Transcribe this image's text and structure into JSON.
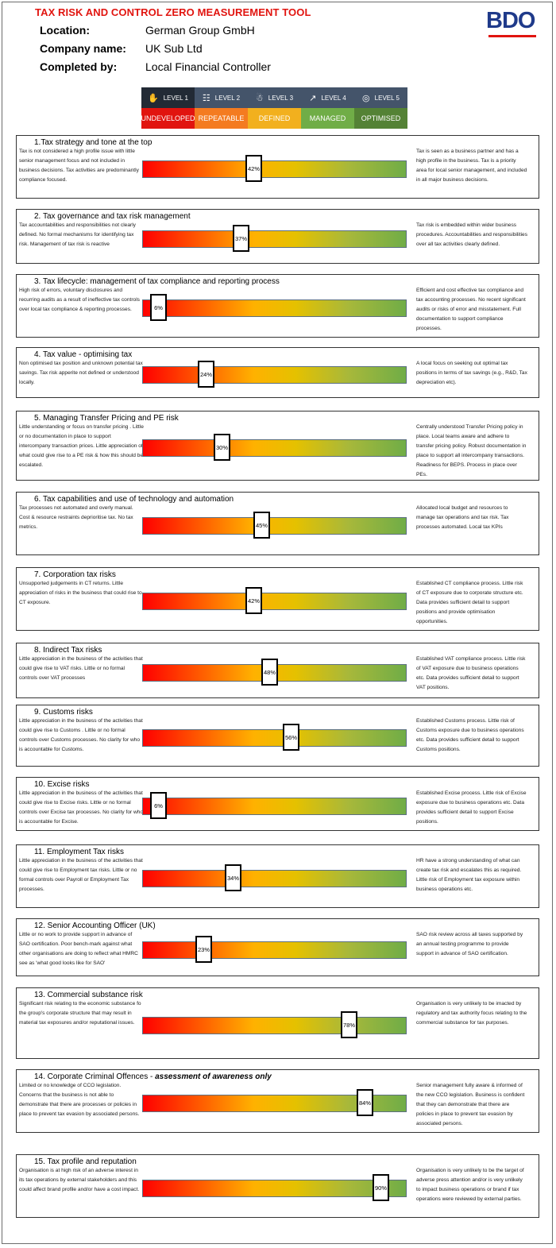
{
  "header": {
    "title": "TAX RISK AND CONTROL ZERO MEASUREMENT TOOL",
    "location_label": "Location:",
    "location_value": "German Group GmbH",
    "company_label": "Company name:",
    "company_value": "UK Sub Ltd",
    "completed_label": "Completed by:",
    "completed_value": "Local Financial Controller",
    "logo_text": "BDO"
  },
  "levels": [
    {
      "label": "LEVEL 1",
      "icon": "footprint-icon",
      "stage": "UNDEVELOPED",
      "color": "#e1140f"
    },
    {
      "label": "LEVEL 2",
      "icon": "document-icon",
      "stage": "REPEATABLE",
      "color": "#f47b20"
    },
    {
      "label": "LEVEL 3",
      "icon": "person-icon",
      "stage": "DEFINED",
      "color": "#f2b01e"
    },
    {
      "label": "LEVEL 4",
      "icon": "chart-icon",
      "stage": "MANAGED",
      "color": "#70ad47"
    },
    {
      "label": "LEVEL 5",
      "icon": "target-icon",
      "stage": "OPTIMISED",
      "color": "#548235"
    }
  ],
  "sections": [
    {
      "title": "1.Tax strategy and tone at the top",
      "left": "Tax is not considered a high profile issue with little senior management focus and not included in business decisions. Tax activities are predominantly compliance focused.",
      "right": "Tax is seen as a business partner and has a high profile in the business. Tax is a priority area for local senior management, and included in all major business decisions.",
      "value": 42,
      "label": "42%"
    },
    {
      "title": "2. Tax governance and tax risk management",
      "left": "Tax accountabilities and responsibilities not clearly defined. No formal mechanisms for identifying tax risk. Management of tax risk is reactive",
      "right": "Tax risk is embedded within wider business procedures. Accountabilities and responsibilities over all tax activities clearly defined.",
      "value": 37,
      "label": "37%"
    },
    {
      "title": "3. Tax lifecycle: management of tax compliance and reporting process",
      "left": "High risk of errors, voluntary disclosures and recurring audits as a result of ineffective tax controls over local tax compliance & reporting processes.",
      "right": "Efficient and cost effective tax compliance and tax accounting processes. No recent significant audits or risks of error and misstatement. Full documentation to support compliance processes.",
      "value": 6,
      "label": "6%"
    },
    {
      "title": "4. Tax value - optimising tax",
      "left": "Non optimised tax position and unknown potential tax savings. Tax risk apperite not defined or understood locally.",
      "right": "A local focus on seeking out optimal tax positions in terms of tax savings (e.g., R&D, Tax depreciation etc).",
      "value": 24,
      "label": "24%"
    },
    {
      "title": "5. Managing Transfer Pricing and PE risk",
      "left": "Little understanding or focus on transfer pricing . Little or no documentation in place to support intercompany transaction prices. Little appreciation of what could give rise to a PE risk & how this should be escalated.",
      "right": "Centrally understood Transfer Pricing policy in place. Local teams aware and adhere to transfer pricing policy. Robust documentation in place to support all intercompany transactions. Readiness for BEPS. Process in place over PEs.",
      "value": 30,
      "label": "30%"
    },
    {
      "title": "6. Tax capabilities and use of technology and automation",
      "left": "Tax processes not automated and overly manual. Cost & resource restraints deprioritise tax. No tax metrics.",
      "right": "Allocated local budget and resources to manage tax operations and tax risk. Tax processes automated. Local tax KPIs",
      "value": 45,
      "label": "45%"
    },
    {
      "title": "7. Corporation tax risks",
      "left": "Unsupported judgements in CT returns. Little appreciation of risks in the business that could rise to CT exposure.",
      "right": "Established CT compliance process. Little risk of CT exposure due to corporate structure etc. Data provides sufficient detail to support positions and provide optimisation opportunities.",
      "value": 42,
      "label": "42%"
    },
    {
      "title": "8. Indirect Tax risks",
      "left": "Little appreciation in the business of the activities that could give rise to VAT risks. Little or no formal controls over VAT processes",
      "right": "Established VAT compliance process. Little risk of VAT exposure due to business operations etc. Data provides sufficient detail to support VAT positions.",
      "value": 48,
      "label": "48%"
    },
    {
      "title": "9. Customs risks",
      "left": "Little appreciation in the business of the activities that could give rise to Customs . Little or no formal controls over Customs processes. No clarity for who is accountable for Customs.",
      "right": "Established Customs process. Little risk of Customs exposure due to business operations etc. Data provides sufficient detail to support Customs positions.",
      "value": 56,
      "label": "56%"
    },
    {
      "title": "10. Excise risks",
      "left": "Little appreciation in the business of the activities that could give rise to Excise risks. Little or no formal controls over Excise tax processes. No clarity for who is accountable for Excise.",
      "right": "Established Excise process. Little risk of Excise exposure due to business operations etc. Data provides sufficient detail to support Excise positions.",
      "value": 6,
      "label": "6%"
    },
    {
      "title": "11. Employment Tax risks",
      "left": "Little appreciation in the business of the activities that could give rise to Employment tax risks. Little or no formal controls over Payroll or Employment Tax processes.",
      "right": "HR have a strong understanding of what can create tax risk and escalates this as required. Little risk of Employment tax exposure within business operations etc.",
      "value": 34,
      "label": "34%"
    },
    {
      "title": "12. Senior Accounting Officer (UK)",
      "left": "Little or no work to provide support in advance of SAO certification. Poor bench-mark against what other organisations are doing to reflect what HMRC see as 'what good looks like for SAO'",
      "right": "SAO risk review across all taxes supported by an annual testing programme to provide support in advance of SAO certification.",
      "value": 23,
      "label": "23%"
    },
    {
      "title": "13. Commercial substance risk",
      "left": "Significant risk relating to the economic substance fo the group's corporate structure that may result in material tax exposures and/or reputational issues.",
      "right": "Organisation is very unlikely to be imacted by regulatory and tax authority focus relating to the commercial substance for tax purposes.",
      "value": 78,
      "label": "78%"
    },
    {
      "title": "14. Corporate Criminal Offences - ",
      "title_em": "assessment of awareness only",
      "left": "Limited or no knowledge of CCO legislation. Concerns that the business is not able to demonstrate that there are processes or policies in place to prevent tax evasion by associated persons.",
      "right": "Senior management fully aware & informed of the new CCO legislation. Business is confident that they can demonstrate that there are policies in place to prevent tax evasion by associated persons.",
      "value": 84,
      "label": "84%"
    },
    {
      "title": "15. Tax profile and reputation",
      "left": "Organisation is at high risk of an adverse interest in its tax operations by external stakeholders and this could affect brand profile and/or have a cost impact.",
      "right": "Organisation is very unlikely to be the target of adverse press attention and/or is very unlikely to impact business operations or brand if tax operations were reviewed by external parties.",
      "value": 90,
      "label": "90%"
    }
  ]
}
